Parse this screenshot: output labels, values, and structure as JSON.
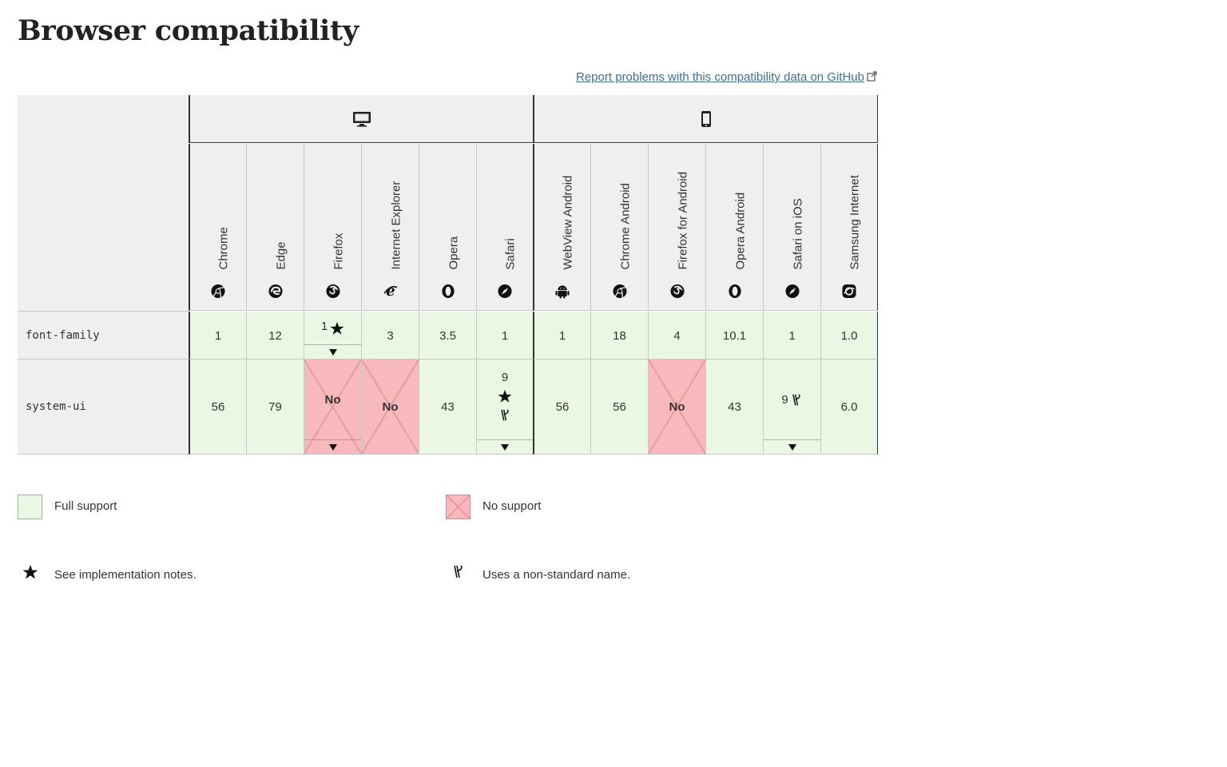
{
  "page": {
    "title": "Browser compatibility"
  },
  "report": {
    "text": "Report problems with this compatibility data on GitHub",
    "icon": "external-link-icon"
  },
  "platforms": [
    {
      "name": "desktop",
      "icon": "desktop-icon"
    },
    {
      "name": "mobile",
      "icon": "mobile-icon"
    }
  ],
  "browsers": [
    {
      "name": "Chrome",
      "icon": "chrome-icon"
    },
    {
      "name": "Edge",
      "icon": "edge-icon"
    },
    {
      "name": "Firefox",
      "icon": "firefox-icon"
    },
    {
      "name": "Internet Explorer",
      "icon": "internet-explorer-icon"
    },
    {
      "name": "Opera",
      "icon": "opera-icon"
    },
    {
      "name": "Safari",
      "icon": "safari-icon"
    },
    {
      "name": "WebView Android",
      "icon": "android-icon"
    },
    {
      "name": "Chrome Android",
      "icon": "chrome-icon"
    },
    {
      "name": "Firefox for Android",
      "icon": "firefox-icon"
    },
    {
      "name": "Opera Android",
      "icon": "opera-icon"
    },
    {
      "name": "Safari on iOS",
      "icon": "safari-icon"
    },
    {
      "name": "Samsung Internet",
      "icon": "samsung-internet-icon"
    }
  ],
  "rows": [
    {
      "feature": "font-family",
      "cells": [
        {
          "value": "1",
          "support": "yes"
        },
        {
          "value": "12",
          "support": "yes"
        },
        {
          "value": "1",
          "support": "yes",
          "notes": true,
          "expand": true
        },
        {
          "value": "3",
          "support": "yes"
        },
        {
          "value": "3.5",
          "support": "yes"
        },
        {
          "value": "1",
          "support": "yes"
        },
        {
          "value": "1",
          "support": "yes"
        },
        {
          "value": "18",
          "support": "yes"
        },
        {
          "value": "4",
          "support": "yes"
        },
        {
          "value": "10.1",
          "support": "yes"
        },
        {
          "value": "1",
          "support": "yes"
        },
        {
          "value": "1.0",
          "support": "yes"
        }
      ]
    },
    {
      "feature": "system-ui",
      "cells": [
        {
          "value": "56",
          "support": "yes"
        },
        {
          "value": "79",
          "support": "yes"
        },
        {
          "value": "No",
          "support": "no",
          "expand": true
        },
        {
          "value": "No",
          "support": "no"
        },
        {
          "value": "43",
          "support": "yes"
        },
        {
          "value": "9",
          "support": "yes",
          "notes": true,
          "altname": true,
          "stacked": true,
          "expand": true
        },
        {
          "value": "56",
          "support": "yes"
        },
        {
          "value": "56",
          "support": "yes"
        },
        {
          "value": "No",
          "support": "no"
        },
        {
          "value": "43",
          "support": "yes"
        },
        {
          "value": "9",
          "support": "yes",
          "altname": true,
          "expand": true
        },
        {
          "value": "6.0",
          "support": "yes"
        }
      ]
    }
  ],
  "legend": {
    "full_support": "Full support",
    "no_support": "No support",
    "impl_notes": "See implementation notes.",
    "non_standard": "Uses a non-standard name."
  },
  "colors": {
    "yes": "#e9f7e3",
    "no": "#f8b9bd",
    "link": "#3b6e9e"
  }
}
